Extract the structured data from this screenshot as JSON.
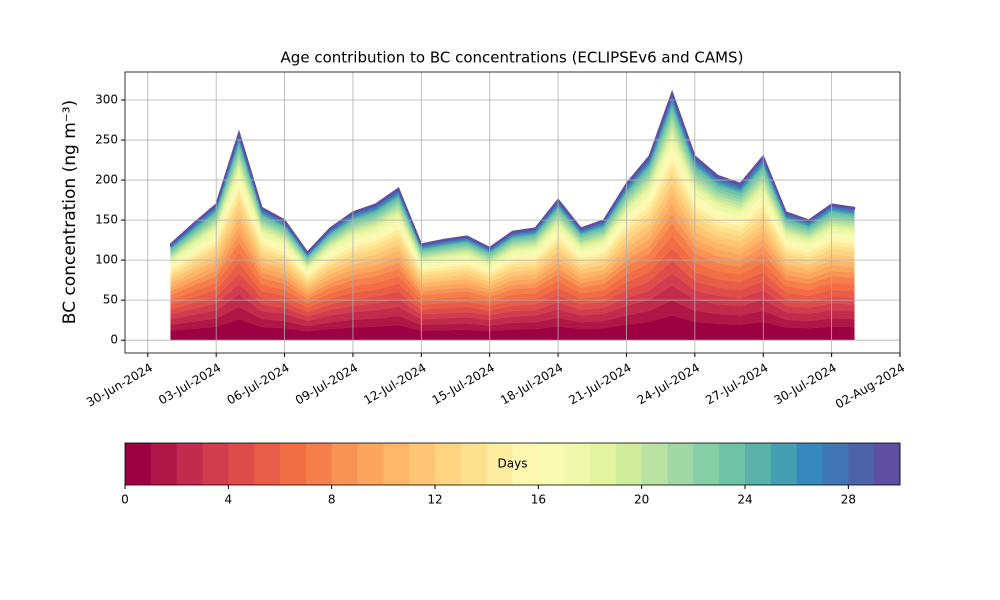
{
  "chart_data": {
    "type": "stacked_area",
    "title": "Age contribution to BC concentrations (ECLIPSEv6 and CAMS)",
    "y_label": "BC concentration (ng m⁻³)",
    "x": [
      "2024-07-01",
      "2024-07-02",
      "2024-07-03",
      "2024-07-04",
      "2024-07-05",
      "2024-07-06",
      "2024-07-07",
      "2024-07-08",
      "2024-07-09",
      "2024-07-10",
      "2024-07-11",
      "2024-07-12",
      "2024-07-13",
      "2024-07-14",
      "2024-07-15",
      "2024-07-16",
      "2024-07-17",
      "2024-07-18",
      "2024-07-19",
      "2024-07-20",
      "2024-07-21",
      "2024-07-22",
      "2024-07-23",
      "2024-07-24",
      "2024-07-25",
      "2024-07-26",
      "2024-07-27",
      "2024-07-28",
      "2024-07-29",
      "2024-07-30",
      "2024-07-31"
    ],
    "xlim": [
      "2024-06-29",
      "2024-08-02"
    ],
    "xticks": [
      {
        "value": "2024-06-30",
        "label": "30-Jun-2024"
      },
      {
        "value": "2024-07-03",
        "label": "03-Jul-2024"
      },
      {
        "value": "2024-07-06",
        "label": "06-Jul-2024"
      },
      {
        "value": "2024-07-09",
        "label": "09-Jul-2024"
      },
      {
        "value": "2024-07-12",
        "label": "12-Jul-2024"
      },
      {
        "value": "2024-07-15",
        "label": "15-Jul-2024"
      },
      {
        "value": "2024-07-18",
        "label": "18-Jul-2024"
      },
      {
        "value": "2024-07-21",
        "label": "21-Jul-2024"
      },
      {
        "value": "2024-07-24",
        "label": "24-Jul-2024"
      },
      {
        "value": "2024-07-27",
        "label": "27-Jul-2024"
      },
      {
        "value": "2024-07-30",
        "label": "30-Jul-2024"
      },
      {
        "value": "2024-08-02",
        "label": "02-Aug-2024"
      }
    ],
    "ylim": [
      -16,
      335
    ],
    "yticks": [
      0,
      50,
      100,
      150,
      200,
      250,
      300
    ],
    "grid": true,
    "colorbar": {
      "label": "Days",
      "lim": [
        0,
        30
      ],
      "ticks": [
        0,
        4,
        8,
        12,
        16,
        20,
        24,
        28
      ]
    },
    "series": [
      {
        "color": "#9e0142",
        "values": [
          12,
          14.5,
          17,
          26,
          16.5,
          15,
          11,
          14,
          16,
          17,
          19,
          12,
          12.5,
          13,
          11.5,
          13.5,
          14,
          17.5,
          14,
          15,
          19.5,
          23,
          31,
          23,
          20.5,
          19.5,
          23,
          16,
          15,
          17,
          16.5
        ]
      },
      {
        "color": "#b01747",
        "values": [
          7.2,
          8.7,
          10.2,
          15.6,
          9.9,
          9,
          6.6,
          8.4,
          9.6,
          10.2,
          11.4,
          7.2,
          7.5,
          7.8,
          6.9,
          8.1,
          8.4,
          10.5,
          8.4,
          9,
          11.7,
          13.8,
          18.6,
          13.8,
          12.3,
          11.7,
          13.8,
          9.6,
          9,
          10.2,
          9.9
        ]
      },
      {
        "color": "#c22b4b",
        "values": [
          7.2,
          8.7,
          10.2,
          15.6,
          9.9,
          9,
          6.6,
          8.4,
          9.6,
          10.2,
          11.4,
          7.2,
          7.5,
          7.8,
          6.9,
          8.1,
          8.4,
          10.5,
          8.4,
          9,
          11.7,
          13.8,
          18.6,
          13.8,
          12.3,
          11.7,
          13.8,
          9.6,
          9,
          10.2,
          9.9
        ]
      },
      {
        "color": "#d33c4e",
        "values": [
          6,
          7.3,
          8.5,
          13,
          8.3,
          7.5,
          5.5,
          7,
          8,
          8.5,
          9.5,
          6,
          6.3,
          6.5,
          5.8,
          6.8,
          7,
          8.8,
          7,
          7.5,
          9.8,
          11.5,
          15.5,
          11.5,
          10.3,
          9.8,
          11.5,
          8,
          7.5,
          8.5,
          8.3
        ]
      },
      {
        "color": "#df4d4b",
        "values": [
          6,
          7.3,
          8.5,
          13,
          8.3,
          7.5,
          5.5,
          7,
          8,
          8.5,
          9.5,
          6,
          6.3,
          6.5,
          5.8,
          6.8,
          7,
          8.8,
          7,
          7.5,
          9.8,
          11.5,
          15.5,
          11.5,
          10.3,
          9.8,
          11.5,
          8,
          7.5,
          8.5,
          8.3
        ]
      },
      {
        "color": "#e95c47",
        "values": [
          6,
          7.3,
          8.5,
          13,
          8.3,
          7.5,
          5.5,
          7,
          8,
          8.5,
          9.5,
          6,
          6.3,
          6.5,
          5.8,
          6.8,
          7,
          8.8,
          7,
          7.5,
          9.8,
          11.5,
          15.5,
          11.5,
          10.3,
          9.8,
          11.5,
          8,
          7.5,
          8.5,
          8.3
        ]
      },
      {
        "color": "#f26c44",
        "values": [
          6,
          7.3,
          8.5,
          13,
          8.3,
          7.5,
          5.5,
          7,
          8,
          8.5,
          9.5,
          6,
          6.3,
          6.5,
          5.8,
          6.8,
          7,
          8.8,
          7,
          7.5,
          9.8,
          11.5,
          15.5,
          11.5,
          10.3,
          9.8,
          11.5,
          8,
          7.5,
          8.5,
          8.3
        ]
      },
      {
        "color": "#f67e4b",
        "values": [
          6,
          7.3,
          8.5,
          13,
          8.3,
          7.5,
          5.5,
          7,
          8,
          8.5,
          9.5,
          6,
          6.3,
          6.5,
          5.8,
          6.8,
          7,
          8.8,
          7,
          7.5,
          9.8,
          11.5,
          15.5,
          11.5,
          10.3,
          9.8,
          11.5,
          8,
          7.5,
          8.5,
          8.3
        ]
      },
      {
        "color": "#f99355",
        "values": [
          4.8,
          5.8,
          6.8,
          10.4,
          6.6,
          6,
          4.4,
          5.6,
          6.4,
          6.8,
          7.6,
          4.8,
          5,
          5.2,
          4.6,
          5.4,
          5.6,
          7,
          5.6,
          6,
          7.8,
          9.2,
          12.4,
          9.2,
          8.2,
          7.8,
          9.2,
          6.4,
          6,
          6.8,
          6.6
        ]
      },
      {
        "color": "#fca55d",
        "values": [
          4.8,
          5.8,
          6.8,
          10.4,
          6.6,
          6,
          4.4,
          5.6,
          6.4,
          6.8,
          7.6,
          4.8,
          5,
          5.2,
          4.6,
          5.4,
          5.6,
          7,
          5.6,
          6,
          7.8,
          9.2,
          12.4,
          9.2,
          8.2,
          7.8,
          9.2,
          6.4,
          6,
          6.8,
          6.6
        ]
      },
      {
        "color": "#fdb668",
        "values": [
          4.8,
          5.8,
          6.8,
          10.4,
          6.6,
          6,
          4.4,
          5.6,
          6.4,
          6.8,
          7.6,
          4.8,
          5,
          5.2,
          4.6,
          5.4,
          5.6,
          7,
          5.6,
          6,
          7.8,
          9.2,
          12.4,
          9.2,
          8.2,
          7.8,
          9.2,
          6.4,
          6,
          6.8,
          6.6
        ]
      },
      {
        "color": "#fdc574",
        "values": [
          4.8,
          5.8,
          6.8,
          10.4,
          6.6,
          6,
          4.4,
          5.6,
          6.4,
          6.8,
          7.6,
          4.8,
          5,
          5.2,
          4.6,
          5.4,
          5.6,
          7,
          5.6,
          6,
          7.8,
          9.2,
          12.4,
          9.2,
          8.2,
          7.8,
          9.2,
          6.4,
          6,
          6.8,
          6.6
        ]
      },
      {
        "color": "#fed481",
        "values": [
          4.8,
          5.8,
          6.8,
          10.4,
          6.6,
          6,
          4.4,
          5.6,
          6.4,
          6.8,
          7.6,
          4.8,
          5,
          5.2,
          4.6,
          5.4,
          5.6,
          7,
          5.6,
          6,
          7.8,
          9.2,
          12.4,
          9.2,
          8.2,
          7.8,
          9.2,
          6.4,
          6,
          6.8,
          6.6
        ]
      },
      {
        "color": "#fee18d",
        "values": [
          3.6,
          4.4,
          5.1,
          7.8,
          5,
          4.5,
          3.3,
          4.2,
          4.8,
          5.1,
          5.7,
          3.6,
          3.8,
          3.9,
          3.5,
          4.1,
          4.2,
          5.3,
          4.2,
          4.5,
          5.9,
          6.9,
          9.3,
          6.9,
          6.2,
          5.9,
          6.9,
          4.8,
          4.5,
          5.1,
          5
        ]
      },
      {
        "color": "#feec9f",
        "values": [
          3.6,
          4.4,
          5.1,
          7.8,
          5,
          4.5,
          3.3,
          4.2,
          4.8,
          5.1,
          5.7,
          3.6,
          3.8,
          3.9,
          3.5,
          4.1,
          4.2,
          5.3,
          4.2,
          4.5,
          5.9,
          6.9,
          9.3,
          6.9,
          6.2,
          5.9,
          6.9,
          4.8,
          4.5,
          5.1,
          5
        ]
      },
      {
        "color": "#fff6b0",
        "values": [
          3.6,
          4.4,
          5.1,
          7.8,
          5,
          4.5,
          3.3,
          4.2,
          4.8,
          5.1,
          5.7,
          3.6,
          3.8,
          3.9,
          3.5,
          4.1,
          4.2,
          5.3,
          4.2,
          4.5,
          5.9,
          6.9,
          9.3,
          6.9,
          6.2,
          5.9,
          6.9,
          4.8,
          4.5,
          5.1,
          5
        ]
      },
      {
        "color": "#f7fab2",
        "values": [
          3.6,
          4.4,
          5.1,
          7.8,
          5,
          4.5,
          3.3,
          4.2,
          4.8,
          5.1,
          5.7,
          3.6,
          3.8,
          3.9,
          3.5,
          4.1,
          4.2,
          5.3,
          4.2,
          4.5,
          5.9,
          6.9,
          9.3,
          6.9,
          6.2,
          5.9,
          6.9,
          4.8,
          4.5,
          5.1,
          5
        ]
      },
      {
        "color": "#eef8a8",
        "values": [
          3.6,
          4.4,
          5.1,
          7.8,
          5,
          4.5,
          3.3,
          4.2,
          4.8,
          5.1,
          5.7,
          3.6,
          3.8,
          3.9,
          3.5,
          4.1,
          4.2,
          5.3,
          4.2,
          4.5,
          5.9,
          6.9,
          9.3,
          6.9,
          6.2,
          5.9,
          6.9,
          4.8,
          4.5,
          5.1,
          5
        ]
      },
      {
        "color": "#e3f49c",
        "values": [
          2.4,
          2.9,
          3.4,
          5.2,
          3.3,
          3,
          2.2,
          2.8,
          3.2,
          3.4,
          3.8,
          2.4,
          2.5,
          2.6,
          2.3,
          2.7,
          2.8,
          3.5,
          2.8,
          3,
          3.9,
          4.6,
          6.2,
          4.6,
          4.1,
          3.9,
          4.6,
          3.2,
          3,
          3.4,
          3.3
        ]
      },
      {
        "color": "#cfeb9c",
        "values": [
          2.4,
          2.9,
          3.4,
          5.2,
          3.3,
          3,
          2.2,
          2.8,
          3.2,
          3.4,
          3.8,
          2.4,
          2.5,
          2.6,
          2.3,
          2.7,
          2.8,
          3.5,
          2.8,
          3,
          3.9,
          4.6,
          6.2,
          4.6,
          4.1,
          3.9,
          4.6,
          3.2,
          3,
          3.4,
          3.3
        ]
      },
      {
        "color": "#b8e2a1",
        "values": [
          2.4,
          2.9,
          3.4,
          5.2,
          3.3,
          3,
          2.2,
          2.8,
          3.2,
          3.4,
          3.8,
          2.4,
          2.5,
          2.6,
          2.3,
          2.7,
          2.8,
          3.5,
          2.8,
          3,
          3.9,
          4.6,
          6.2,
          4.6,
          4.1,
          3.9,
          4.6,
          3.2,
          3,
          3.4,
          3.3
        ]
      },
      {
        "color": "#9fd8a4",
        "values": [
          2.4,
          2.9,
          3.4,
          5.2,
          3.3,
          3,
          2.2,
          2.8,
          3.2,
          3.4,
          3.8,
          2.4,
          2.5,
          2.6,
          2.3,
          2.7,
          2.8,
          3.5,
          2.8,
          3,
          3.9,
          4.6,
          6.2,
          4.6,
          4.1,
          3.9,
          4.6,
          3.2,
          3,
          3.4,
          3.3
        ]
      },
      {
        "color": "#86cea4",
        "values": [
          2.4,
          2.9,
          3.4,
          5.2,
          3.3,
          3,
          2.2,
          2.8,
          3.2,
          3.4,
          3.8,
          2.4,
          2.5,
          2.6,
          2.3,
          2.7,
          2.8,
          3.5,
          2.8,
          3,
          3.9,
          4.6,
          6.2,
          4.6,
          4.1,
          3.9,
          4.6,
          3.2,
          3,
          3.4,
          3.3
        ]
      },
      {
        "color": "#6dc3a5",
        "values": [
          2.4,
          2.9,
          3.4,
          5.2,
          3.3,
          3,
          2.2,
          2.8,
          3.2,
          3.4,
          3.8,
          2.4,
          2.5,
          2.6,
          2.3,
          2.7,
          2.8,
          3.5,
          2.8,
          3,
          3.9,
          4.6,
          6.2,
          4.6,
          4.1,
          3.9,
          4.6,
          3.2,
          3,
          3.4,
          3.3
        ]
      },
      {
        "color": "#58b2aa",
        "values": [
          1.2,
          1.5,
          1.7,
          2.6,
          1.7,
          1.5,
          1.1,
          1.4,
          1.6,
          1.7,
          1.9,
          1.2,
          1.3,
          1.3,
          1.2,
          1.4,
          1.4,
          1.8,
          1.4,
          1.5,
          2,
          2.3,
          3.1,
          2.3,
          2.1,
          2,
          2.3,
          1.6,
          1.5,
          1.7,
          1.7
        ]
      },
      {
        "color": "#459eb4",
        "values": [
          1.2,
          1.5,
          1.7,
          2.6,
          1.7,
          1.5,
          1.1,
          1.4,
          1.6,
          1.7,
          1.9,
          1.2,
          1.3,
          1.3,
          1.2,
          1.4,
          1.4,
          1.8,
          1.4,
          1.5,
          2,
          2.3,
          3.1,
          2.3,
          2.1,
          2,
          2.3,
          1.6,
          1.5,
          1.7,
          1.7
        ]
      },
      {
        "color": "#3789bd",
        "values": [
          1.2,
          1.5,
          1.7,
          2.6,
          1.7,
          1.5,
          1.1,
          1.4,
          1.6,
          1.7,
          1.9,
          1.2,
          1.3,
          1.3,
          1.2,
          1.4,
          1.4,
          1.8,
          1.4,
          1.5,
          2,
          2.3,
          3.1,
          2.3,
          2.1,
          2,
          2.3,
          1.6,
          1.5,
          1.7,
          1.7
        ]
      },
      {
        "color": "#3f76b3",
        "values": [
          1.2,
          1.5,
          1.7,
          2.6,
          1.7,
          1.5,
          1.1,
          1.4,
          1.6,
          1.7,
          1.9,
          1.2,
          1.3,
          1.3,
          1.2,
          1.4,
          1.4,
          1.8,
          1.4,
          1.5,
          2,
          2.3,
          3.1,
          2.3,
          2.1,
          2,
          2.3,
          1.6,
          1.5,
          1.7,
          1.7
        ]
      },
      {
        "color": "#4c63aa",
        "values": [
          1.2,
          1.5,
          1.7,
          2.6,
          1.7,
          1.5,
          1.1,
          1.4,
          1.6,
          1.7,
          1.9,
          1.2,
          1.3,
          1.3,
          1.2,
          1.4,
          1.4,
          1.8,
          1.4,
          1.5,
          2,
          2.3,
          3.1,
          2.3,
          2.1,
          2,
          2.3,
          1.6,
          1.5,
          1.7,
          1.7
        ]
      },
      {
        "color": "#5e4fa2",
        "values": [
          1.2,
          1.5,
          1.7,
          2.6,
          1.7,
          1.5,
          1.1,
          1.4,
          1.6,
          1.7,
          1.9,
          1.2,
          1.3,
          1.3,
          1.2,
          1.4,
          1.4,
          1.8,
          1.4,
          1.5,
          2,
          2.3,
          3.1,
          2.3,
          2.1,
          2,
          2.3,
          1.6,
          1.5,
          1.7,
          1.7
        ]
      }
    ]
  }
}
